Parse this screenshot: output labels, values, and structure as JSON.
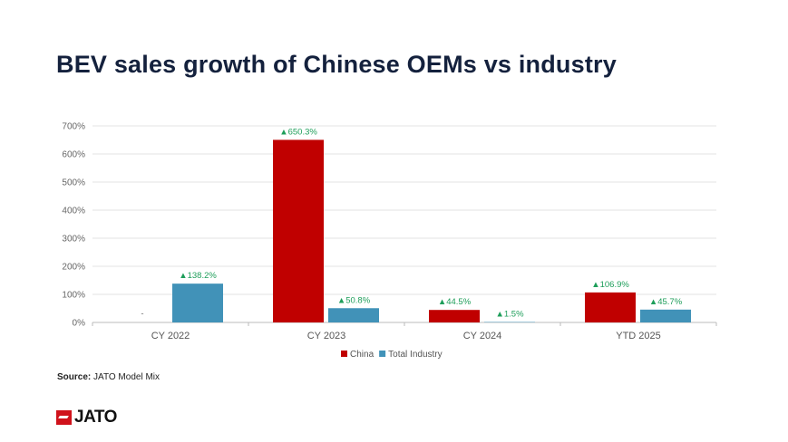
{
  "title": "BEV sales growth of Chinese OEMs vs industry",
  "source": {
    "label": "Source:",
    "text": "JATO Model Mix"
  },
  "logo": "JATO",
  "chart_data": {
    "type": "bar",
    "categories": [
      "CY 2022",
      "CY 2023",
      "CY 2024",
      "YTD 2025"
    ],
    "series": [
      {
        "name": "China",
        "color": "#c00000",
        "values": [
          null,
          650.3,
          44.5,
          106.9
        ],
        "labels": [
          "-",
          "▲650.3%",
          "▲44.5%",
          "▲106.9%"
        ]
      },
      {
        "name": "Total Industry",
        "color": "#4192b8",
        "values": [
          138.2,
          50.8,
          1.5,
          45.7
        ],
        "labels": [
          "▲138.2%",
          "▲50.8%",
          "▲1.5%",
          "▲45.7%"
        ]
      }
    ],
    "ylim": [
      0,
      700
    ],
    "yticks": [
      "0%",
      "100%",
      "200%",
      "300%",
      "400%",
      "500%",
      "600%",
      "700%"
    ],
    "label_color": "#1e9e5a",
    "grid": true,
    "legend": "bottom"
  }
}
